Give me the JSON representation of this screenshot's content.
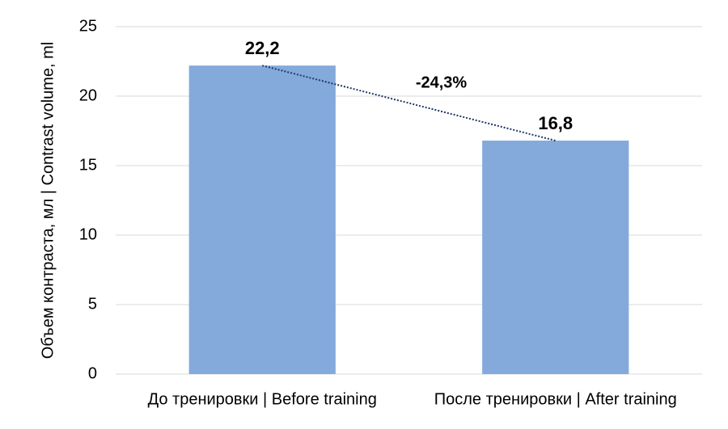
{
  "chart_data": {
    "type": "bar",
    "y_label": "Объем контраста, мл | Contrast volume, ml",
    "categories": [
      "До тренировки | Before training",
      "После тренировки | After training"
    ],
    "values": [
      22.2,
      16.8
    ],
    "value_labels": [
      "22,2",
      "16,8"
    ],
    "color": "#84aadc",
    "annotation": "-24,3%",
    "annotation_color": "#3d8b37",
    "ylim": [
      0,
      25
    ],
    "yticks": [
      0,
      5,
      10,
      15,
      20,
      25
    ],
    "grid": true
  }
}
